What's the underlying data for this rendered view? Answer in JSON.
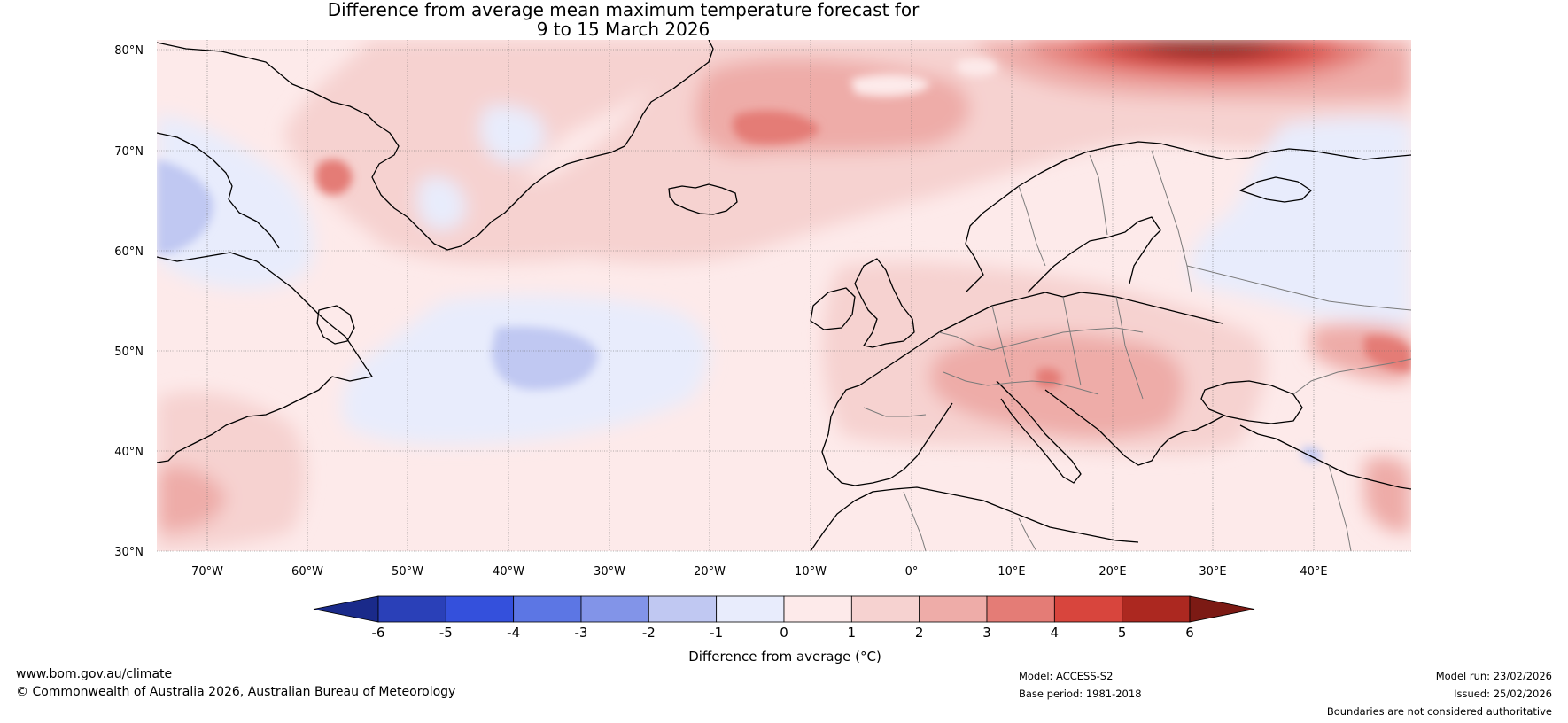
{
  "title": {
    "line1": "Difference from average mean maximum temperature forecast for",
    "line2": "9 to 15 March 2026"
  },
  "map": {
    "lat_labels": [
      "80°N",
      "70°N",
      "60°N",
      "50°N",
      "40°N",
      "30°N"
    ],
    "lon_labels": [
      "70°W",
      "60°W",
      "50°W",
      "40°W",
      "30°W",
      "20°W",
      "10°W",
      "0°",
      "10°E",
      "20°E",
      "30°E",
      "40°E"
    ],
    "region": "North Atlantic and Europe"
  },
  "colorbar": {
    "title": "Difference from average (°C)",
    "ticks": [
      "-6",
      "-5",
      "-4",
      "-3",
      "-2",
      "-1",
      "0",
      "1",
      "2",
      "3",
      "4",
      "5",
      "6"
    ],
    "colors": [
      "#1a2a8a",
      "#2a40b8",
      "#3450dc",
      "#5c76e4",
      "#8294e8",
      "#c0c8f2",
      "#e8ecfc",
      "#fdeaea",
      "#f6d2d0",
      "#eeaca8",
      "#e47c76",
      "#d8453d",
      "#ac2820",
      "#7c1a14"
    ]
  },
  "footer": {
    "website": "www.bom.gov.au/climate",
    "copyright": "© Commonwealth of Australia 2026, Australian Bureau of Meteorology",
    "model": "Model: ACCESS-S2",
    "base_period": "Base period: 1981-2018",
    "model_run": "Model run: 23/02/2026",
    "issued": "Issued: 25/02/2026",
    "disclaimer": "Boundaries are not considered authoritative"
  }
}
